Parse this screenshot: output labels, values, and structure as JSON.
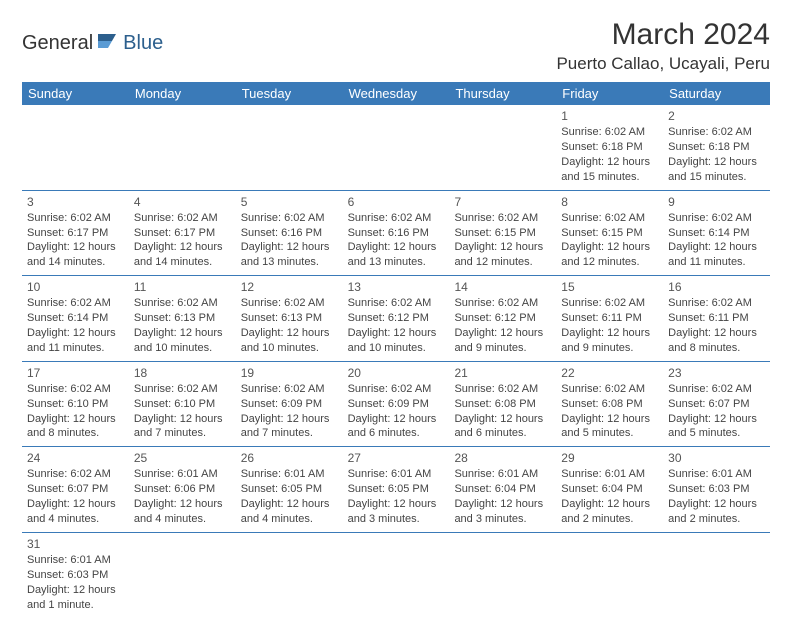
{
  "logo": {
    "text1": "General",
    "text2": "Blue"
  },
  "title": {
    "month": "March 2024",
    "location": "Puerto Callao, Ucayali, Peru"
  },
  "colors": {
    "header_bg": "#3a7ab8",
    "header_text": "#ffffff",
    "border": "#3a7ab8",
    "logo_blue": "#2c5f8d",
    "body_text": "#444444",
    "bg": "#ffffff"
  },
  "fonts": {
    "title_size": 30,
    "location_size": 17,
    "header_size": 13,
    "cell_size": 11,
    "daynum_size": 12
  },
  "dayNames": [
    "Sunday",
    "Monday",
    "Tuesday",
    "Wednesday",
    "Thursday",
    "Friday",
    "Saturday"
  ],
  "weeks": [
    [
      {
        "empty": true
      },
      {
        "empty": true
      },
      {
        "empty": true
      },
      {
        "empty": true
      },
      {
        "empty": true
      },
      {
        "num": "1",
        "sunrise": "6:02 AM",
        "sunset": "6:18 PM",
        "daylight": "12 hours and 15 minutes."
      },
      {
        "num": "2",
        "sunrise": "6:02 AM",
        "sunset": "6:18 PM",
        "daylight": "12 hours and 15 minutes."
      }
    ],
    [
      {
        "num": "3",
        "sunrise": "6:02 AM",
        "sunset": "6:17 PM",
        "daylight": "12 hours and 14 minutes."
      },
      {
        "num": "4",
        "sunrise": "6:02 AM",
        "sunset": "6:17 PM",
        "daylight": "12 hours and 14 minutes."
      },
      {
        "num": "5",
        "sunrise": "6:02 AM",
        "sunset": "6:16 PM",
        "daylight": "12 hours and 13 minutes."
      },
      {
        "num": "6",
        "sunrise": "6:02 AM",
        "sunset": "6:16 PM",
        "daylight": "12 hours and 13 minutes."
      },
      {
        "num": "7",
        "sunrise": "6:02 AM",
        "sunset": "6:15 PM",
        "daylight": "12 hours and 12 minutes."
      },
      {
        "num": "8",
        "sunrise": "6:02 AM",
        "sunset": "6:15 PM",
        "daylight": "12 hours and 12 minutes."
      },
      {
        "num": "9",
        "sunrise": "6:02 AM",
        "sunset": "6:14 PM",
        "daylight": "12 hours and 11 minutes."
      }
    ],
    [
      {
        "num": "10",
        "sunrise": "6:02 AM",
        "sunset": "6:14 PM",
        "daylight": "12 hours and 11 minutes."
      },
      {
        "num": "11",
        "sunrise": "6:02 AM",
        "sunset": "6:13 PM",
        "daylight": "12 hours and 10 minutes."
      },
      {
        "num": "12",
        "sunrise": "6:02 AM",
        "sunset": "6:13 PM",
        "daylight": "12 hours and 10 minutes."
      },
      {
        "num": "13",
        "sunrise": "6:02 AM",
        "sunset": "6:12 PM",
        "daylight": "12 hours and 10 minutes."
      },
      {
        "num": "14",
        "sunrise": "6:02 AM",
        "sunset": "6:12 PM",
        "daylight": "12 hours and 9 minutes."
      },
      {
        "num": "15",
        "sunrise": "6:02 AM",
        "sunset": "6:11 PM",
        "daylight": "12 hours and 9 minutes."
      },
      {
        "num": "16",
        "sunrise": "6:02 AM",
        "sunset": "6:11 PM",
        "daylight": "12 hours and 8 minutes."
      }
    ],
    [
      {
        "num": "17",
        "sunrise": "6:02 AM",
        "sunset": "6:10 PM",
        "daylight": "12 hours and 8 minutes."
      },
      {
        "num": "18",
        "sunrise": "6:02 AM",
        "sunset": "6:10 PM",
        "daylight": "12 hours and 7 minutes."
      },
      {
        "num": "19",
        "sunrise": "6:02 AM",
        "sunset": "6:09 PM",
        "daylight": "12 hours and 7 minutes."
      },
      {
        "num": "20",
        "sunrise": "6:02 AM",
        "sunset": "6:09 PM",
        "daylight": "12 hours and 6 minutes."
      },
      {
        "num": "21",
        "sunrise": "6:02 AM",
        "sunset": "6:08 PM",
        "daylight": "12 hours and 6 minutes."
      },
      {
        "num": "22",
        "sunrise": "6:02 AM",
        "sunset": "6:08 PM",
        "daylight": "12 hours and 5 minutes."
      },
      {
        "num": "23",
        "sunrise": "6:02 AM",
        "sunset": "6:07 PM",
        "daylight": "12 hours and 5 minutes."
      }
    ],
    [
      {
        "num": "24",
        "sunrise": "6:02 AM",
        "sunset": "6:07 PM",
        "daylight": "12 hours and 4 minutes."
      },
      {
        "num": "25",
        "sunrise": "6:01 AM",
        "sunset": "6:06 PM",
        "daylight": "12 hours and 4 minutes."
      },
      {
        "num": "26",
        "sunrise": "6:01 AM",
        "sunset": "6:05 PM",
        "daylight": "12 hours and 4 minutes."
      },
      {
        "num": "27",
        "sunrise": "6:01 AM",
        "sunset": "6:05 PM",
        "daylight": "12 hours and 3 minutes."
      },
      {
        "num": "28",
        "sunrise": "6:01 AM",
        "sunset": "6:04 PM",
        "daylight": "12 hours and 3 minutes."
      },
      {
        "num": "29",
        "sunrise": "6:01 AM",
        "sunset": "6:04 PM",
        "daylight": "12 hours and 2 minutes."
      },
      {
        "num": "30",
        "sunrise": "6:01 AM",
        "sunset": "6:03 PM",
        "daylight": "12 hours and 2 minutes."
      }
    ],
    [
      {
        "num": "31",
        "sunrise": "6:01 AM",
        "sunset": "6:03 PM",
        "daylight": "12 hours and 1 minute."
      },
      {
        "empty": true
      },
      {
        "empty": true
      },
      {
        "empty": true
      },
      {
        "empty": true
      },
      {
        "empty": true
      },
      {
        "empty": true
      }
    ]
  ],
  "labels": {
    "sunrise": "Sunrise: ",
    "sunset": "Sunset: ",
    "daylight": "Daylight: "
  }
}
